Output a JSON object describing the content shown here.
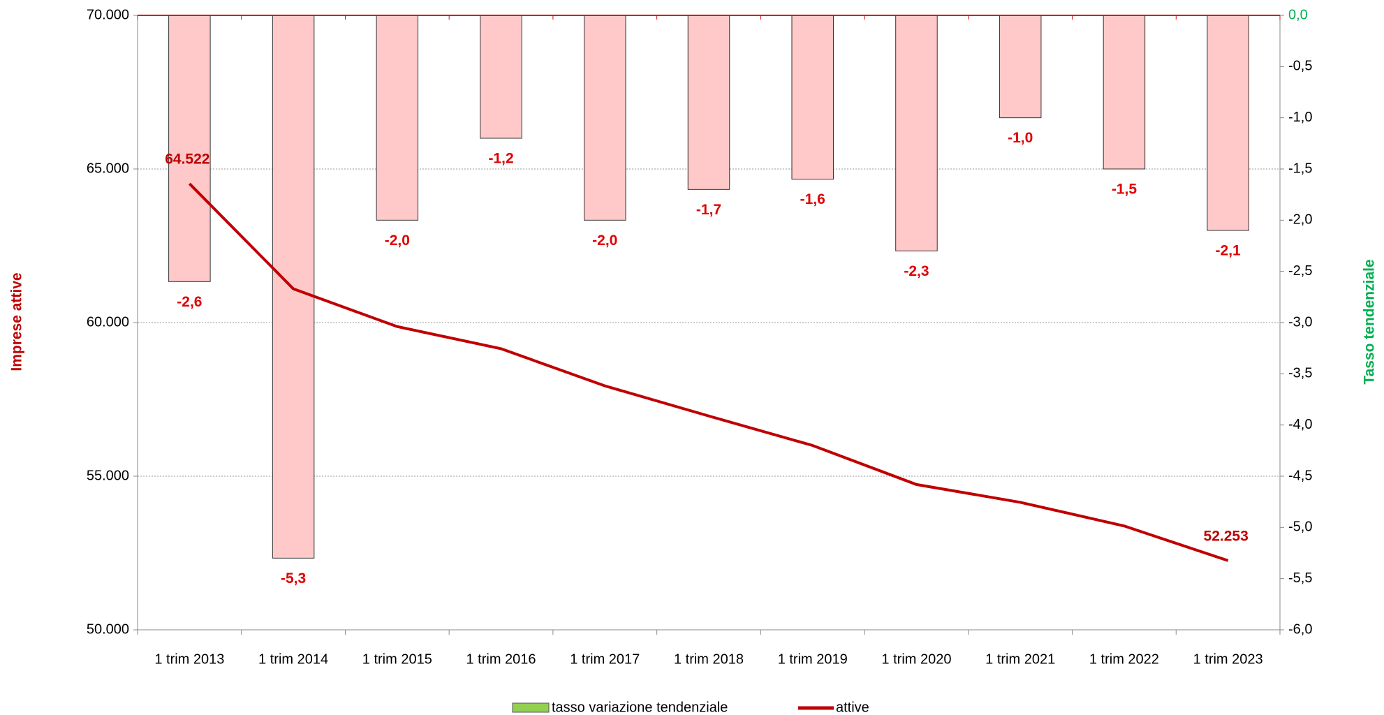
{
  "chart_data": {
    "type": "bar-line",
    "categories": [
      "1 trim 2013",
      "1 trim 2014",
      "1 trim 2015",
      "1 trim 2016",
      "1 trim 2017",
      "1 trim 2018",
      "1 trim 2019",
      "1 trim 2020",
      "1 trim 2021",
      "1 trim 2022",
      "1 trim 2023"
    ],
    "ylabel": "Imprese attive",
    "y2label": "Tasso tendenziale",
    "ylim": [
      50000,
      70000
    ],
    "yticks": [
      {
        "value": 50000,
        "label": "50.000"
      },
      {
        "value": 55000,
        "label": "55.000"
      },
      {
        "value": 60000,
        "label": "60.000"
      },
      {
        "value": 65000,
        "label": "65.000"
      },
      {
        "value": 70000,
        "label": "70.000"
      }
    ],
    "y2lim": [
      -6,
      0
    ],
    "y2ticks": [
      {
        "value": 0,
        "label": "0,0"
      },
      {
        "value": -0.5,
        "label": "-0,5"
      },
      {
        "value": -1,
        "label": "-1,0"
      },
      {
        "value": -1.5,
        "label": "-1,5"
      },
      {
        "value": -2,
        "label": "-2,0"
      },
      {
        "value": -2.5,
        "label": "-2,5"
      },
      {
        "value": -3,
        "label": "-3,0"
      },
      {
        "value": -3.5,
        "label": "-3,5"
      },
      {
        "value": -4,
        "label": "-4,0"
      },
      {
        "value": -4.5,
        "label": "-4,5"
      },
      {
        "value": -5,
        "label": "-5,0"
      },
      {
        "value": -5.5,
        "label": "-5,5"
      },
      {
        "value": -6,
        "label": "-6,0"
      }
    ],
    "grid": true,
    "legend": "bottom",
    "series": [
      {
        "name": "tasso variazione tendenziale",
        "type": "bar",
        "axis": "y2",
        "color": "#ffc9c9",
        "legend_color": "#92d050",
        "values": [
          -2.6,
          -5.3,
          -2.0,
          -1.2,
          -2.0,
          -1.7,
          -1.6,
          -2.3,
          -1.0,
          -1.5,
          -2.1
        ],
        "value_labels": [
          "-2,6",
          "-5,3",
          "-2,0",
          "-1,2",
          "-2,0",
          "-1,7",
          "-1,6",
          "-2,3",
          "-1,0",
          "-1,5",
          "-2,1"
        ]
      },
      {
        "name": "attive",
        "type": "line",
        "color": "#c00000",
        "values": [
          64522,
          61100,
          59870,
          59150,
          57940,
          56960,
          56000,
          54730,
          54150,
          53380,
          52253
        ],
        "value_labels": [
          "64.522",
          null,
          null,
          null,
          null,
          null,
          null,
          null,
          null,
          null,
          "52.253"
        ]
      }
    ]
  }
}
